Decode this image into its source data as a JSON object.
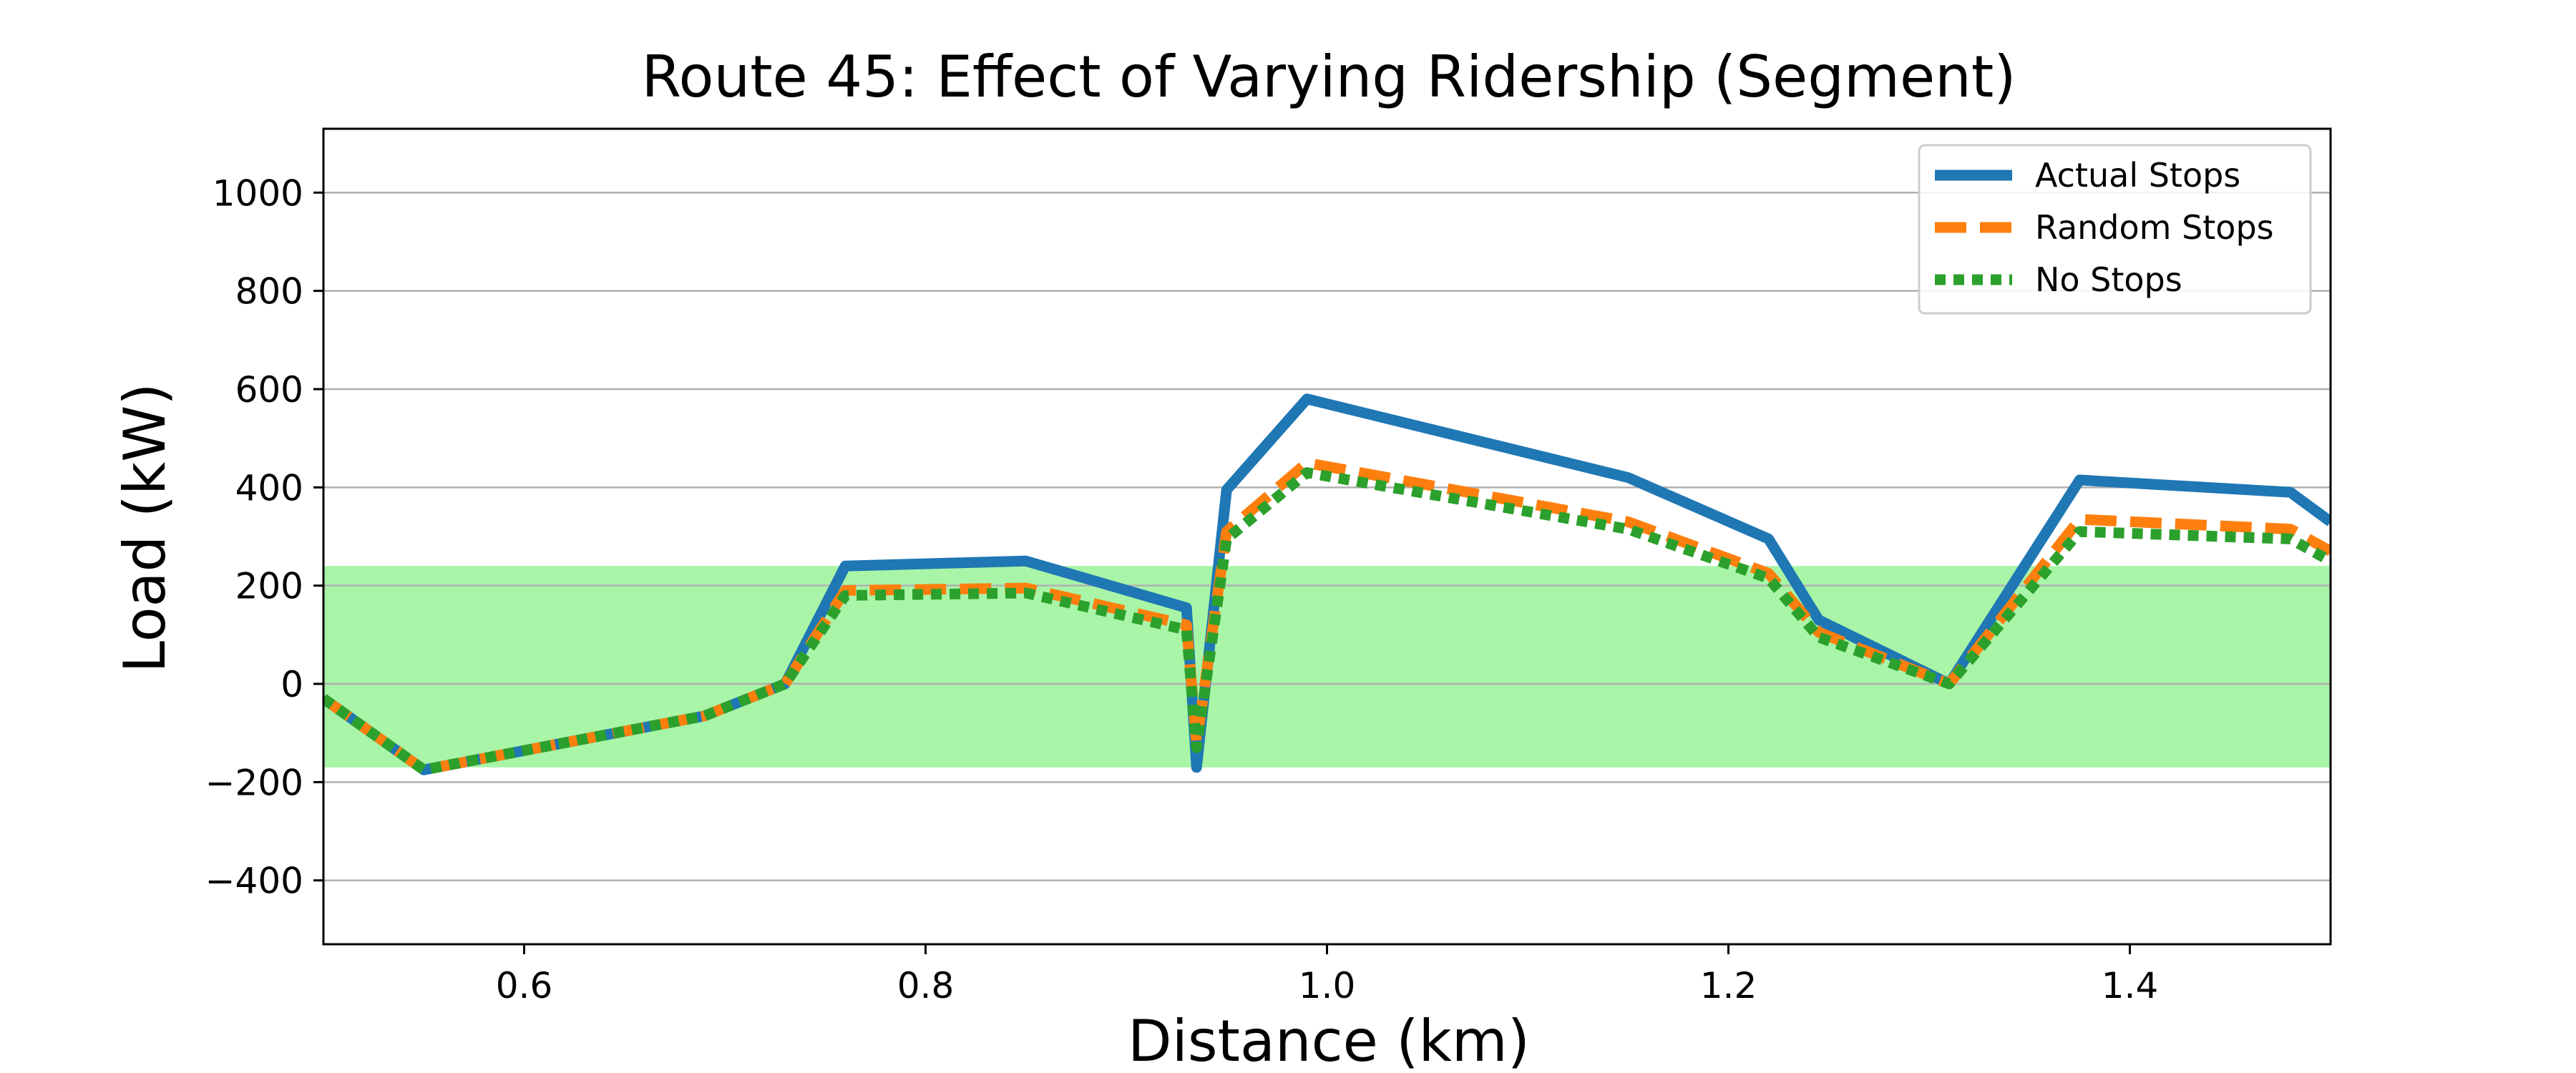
{
  "chart_data": {
    "type": "line",
    "title": "Route 45: Effect of Varying Ridership (Segment)",
    "xlabel": "Distance (km)",
    "ylabel": "Load (kW)",
    "xlim": [
      0.5,
      1.5
    ],
    "ylim": [
      -530,
      1130
    ],
    "xticks": [
      0.6,
      0.8,
      1.0,
      1.2,
      1.4
    ],
    "xtick_labels": [
      "0.6",
      "0.8",
      "1.0",
      "1.2",
      "1.4"
    ],
    "yticks": [
      -400,
      -200,
      0,
      200,
      400,
      600,
      800,
      1000
    ],
    "ytick_labels": [
      "−400",
      "−200",
      "0",
      "200",
      "400",
      "600",
      "800",
      "1000"
    ],
    "grid": "horizontal",
    "legend_position": "top-right",
    "band": {
      "y0": -170,
      "y1": 240,
      "color": "#a8f5a8"
    },
    "series": [
      {
        "name": "Actual Stops",
        "color": "#1f77b4",
        "style": "solid",
        "x": [
          0.5,
          0.55,
          0.69,
          0.73,
          0.76,
          0.85,
          0.93,
          0.935,
          0.95,
          0.99,
          1.15,
          1.22,
          1.245,
          1.31,
          1.375,
          1.48,
          1.5
        ],
        "y": [
          -30,
          -175,
          -65,
          0,
          240,
          250,
          155,
          -170,
          395,
          580,
          420,
          295,
          130,
          0,
          415,
          390,
          330
        ]
      },
      {
        "name": "Random Stops",
        "color": "#ff7f0e",
        "style": "dashed",
        "x": [
          0.5,
          0.55,
          0.69,
          0.73,
          0.76,
          0.85,
          0.93,
          0.935,
          0.95,
          0.99,
          1.15,
          1.22,
          1.245,
          1.31,
          1.375,
          1.48,
          1.5
        ],
        "y": [
          -30,
          -175,
          -65,
          0,
          190,
          195,
          120,
          -120,
          310,
          450,
          330,
          225,
          105,
          0,
          335,
          315,
          270
        ]
      },
      {
        "name": "No Stops",
        "color": "#2ca02c",
        "style": "dotted",
        "x": [
          0.5,
          0.55,
          0.69,
          0.73,
          0.76,
          0.85,
          0.93,
          0.935,
          0.95,
          0.99,
          1.15,
          1.22,
          1.245,
          1.31,
          1.375,
          1.48,
          1.5
        ],
        "y": [
          -30,
          -175,
          -65,
          0,
          180,
          185,
          110,
          -130,
          295,
          430,
          315,
          215,
          95,
          0,
          310,
          295,
          250
        ]
      }
    ]
  }
}
